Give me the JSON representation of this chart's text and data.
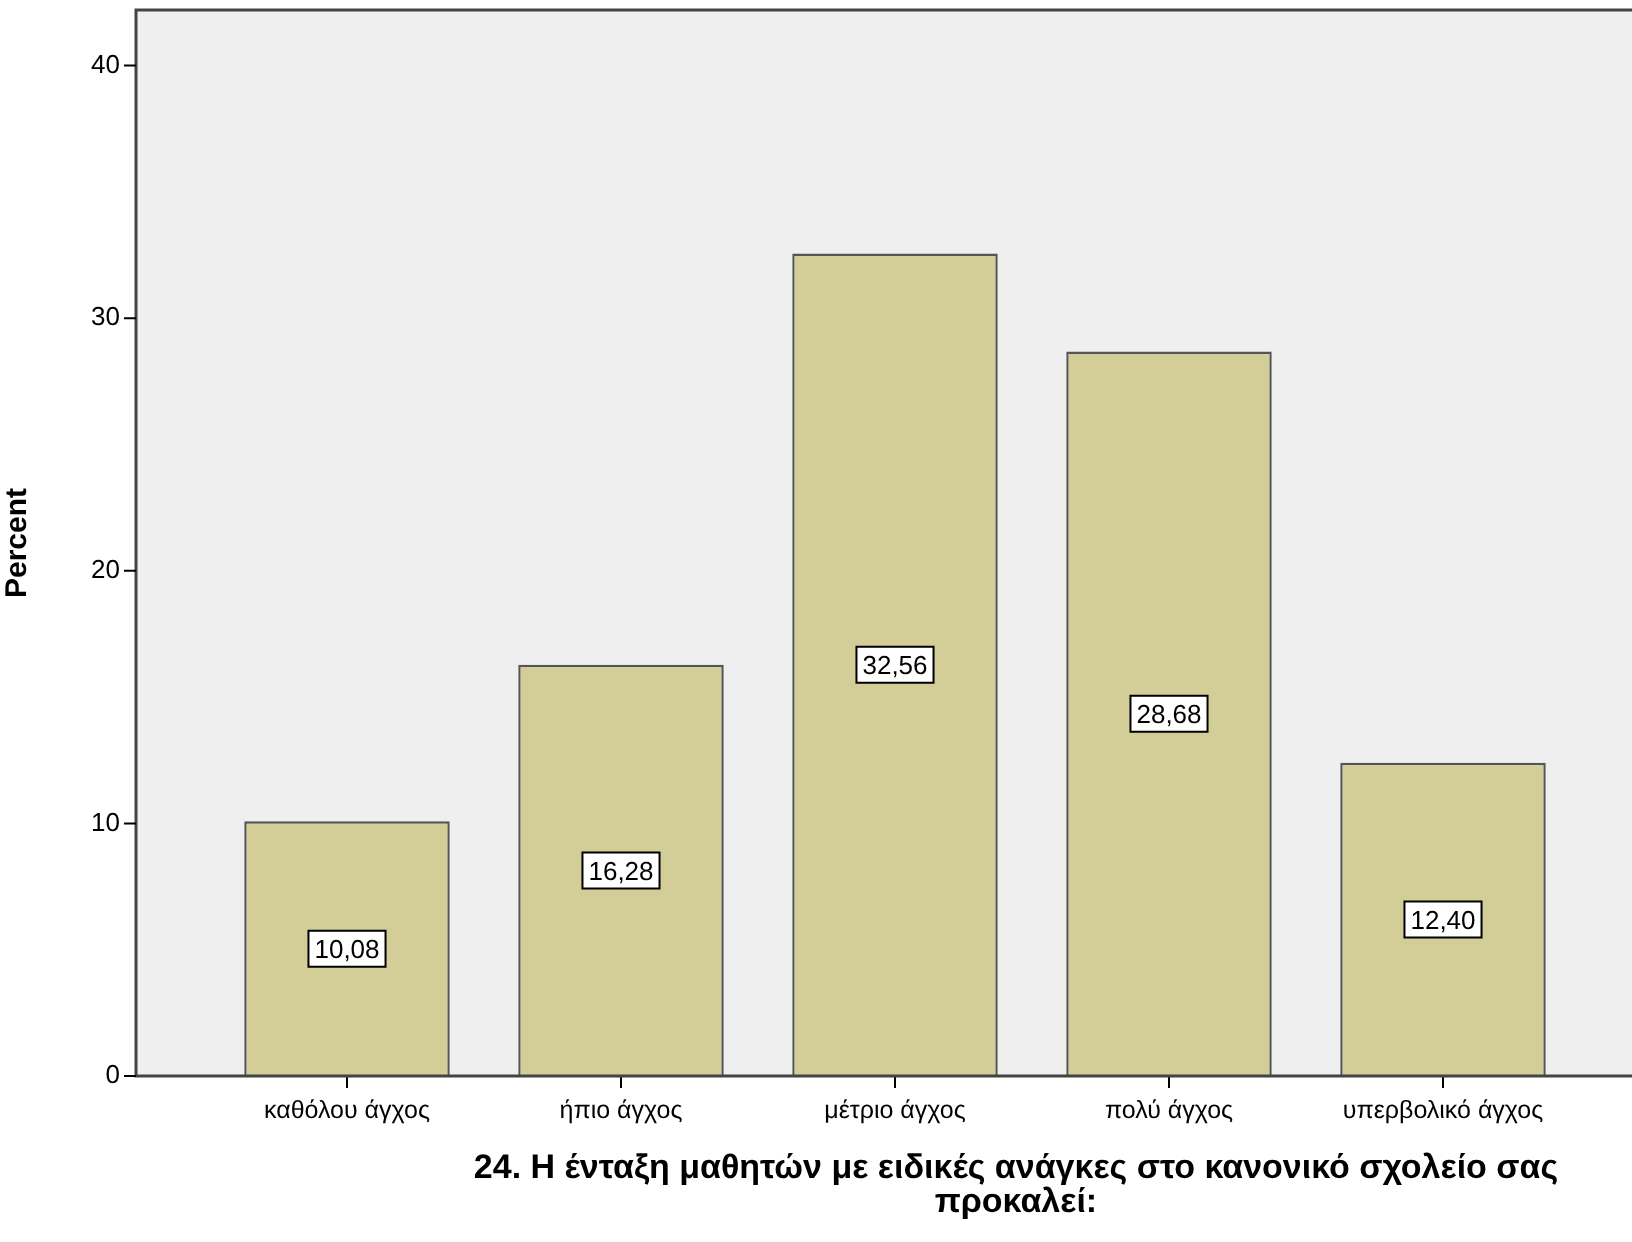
{
  "chart_data": {
    "type": "bar",
    "xlabel": "24. Η ένταξη μαθητών με ειδικές ανάγκες στο κανονικό σχολείο σας προκαλεί:",
    "ylabel": "Percent",
    "categories": [
      "καθόλου άγχος",
      "ήπιο άγχος",
      "μέτριο άγχος",
      "πολύ άγχος",
      "υπερβολικό άγχος"
    ],
    "values": [
      10.08,
      16.28,
      32.56,
      28.68,
      12.4
    ],
    "color": "#d3ce97",
    "value_labels": [
      "10,08",
      "16,28",
      "32,56",
      "28,68",
      "12,40"
    ],
    "ylim": [
      0,
      42.2
    ],
    "yticks": [
      0,
      10,
      20,
      30,
      40
    ]
  }
}
